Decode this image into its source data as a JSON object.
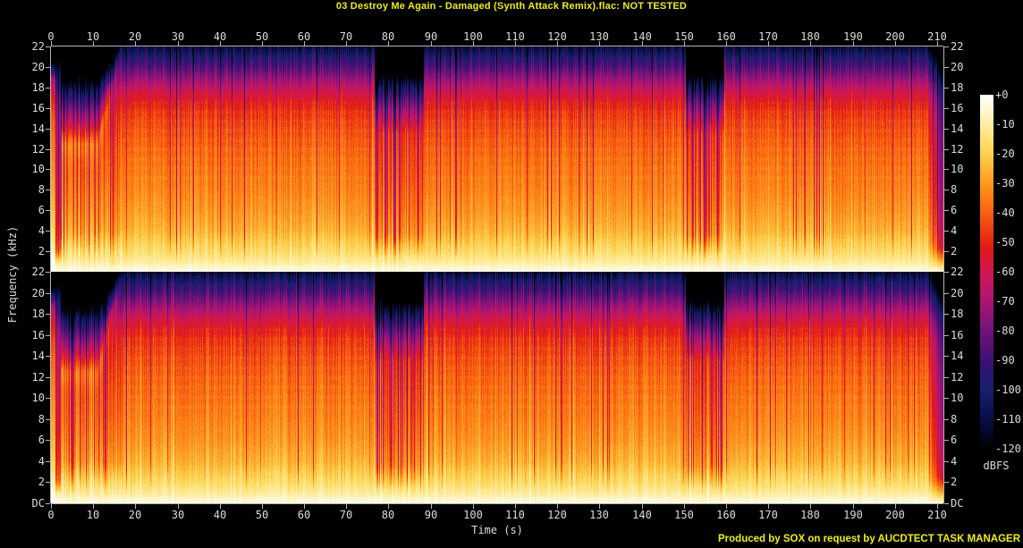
{
  "title": "03 Destroy Me Again - Damaged (Synth Attack Remix).flac: NOT TESTED",
  "file_name": "03 Destroy Me Again - Damaged (Synth Attack Remix).flac",
  "status": "NOT TESTED",
  "credit": "Produced by SOX on request by AUCDTECT TASK MANAGER",
  "colors": {
    "background": "#000000",
    "title_text": "#f0f000",
    "credit_text": "#f0f000",
    "axis_text": "#dcdcdc",
    "axis_line": "#b4b4b4"
  },
  "chart_data": {
    "type": "heatmap",
    "subtype": "audio_spectrogram_dual_channel",
    "title": "03 Destroy Me Again - Damaged (Synth Attack Remix).flac: NOT TESTED",
    "xlabel": "Time (s)",
    "ylabel": "Frequency (kHz)",
    "channels": 2,
    "x_range_s": [
      0,
      211.5
    ],
    "x_ticks": [
      0,
      10,
      20,
      30,
      40,
      50,
      60,
      70,
      80,
      90,
      100,
      110,
      120,
      130,
      140,
      150,
      160,
      170,
      180,
      190,
      200,
      210
    ],
    "freq_ticks_khz": [
      22,
      20,
      18,
      16,
      14,
      12,
      10,
      8,
      6,
      4,
      2
    ],
    "dc_label": "DC",
    "channel_boundary_label": "22",
    "colorbar": {
      "label": "dBFS",
      "tick_labels": [
        "+0",
        "-10",
        "-20",
        "-30",
        "-40",
        "-50",
        "-60",
        "-70",
        "-80",
        "-90",
        "-100",
        "-110",
        "-120"
      ],
      "range_db": [
        0,
        -120
      ],
      "gradient_stops": [
        [
          0,
          "#ffffff"
        ],
        [
          -5,
          "#fff8d6"
        ],
        [
          -12,
          "#ffe98e"
        ],
        [
          -20,
          "#ffd24d"
        ],
        [
          -28,
          "#ffa426"
        ],
        [
          -36,
          "#ff7612"
        ],
        [
          -44,
          "#f04811"
        ],
        [
          -52,
          "#e01a17"
        ],
        [
          -60,
          "#d01850"
        ],
        [
          -68,
          "#b31570"
        ],
        [
          -76,
          "#871478"
        ],
        [
          -84,
          "#5c1278"
        ],
        [
          -92,
          "#341173"
        ],
        [
          -100,
          "#17206b"
        ],
        [
          -108,
          "#0b1150"
        ],
        [
          -116,
          "#03051e"
        ],
        [
          -120,
          "#000000"
        ]
      ]
    },
    "structure": {
      "beat_period_s": 0.472,
      "base_spectrum_db": [
        [
          0,
          -3
        ],
        [
          0.4,
          -6
        ],
        [
          1,
          -11
        ],
        [
          2,
          -17
        ],
        [
          4,
          -26
        ],
        [
          6,
          -31
        ],
        [
          9,
          -36
        ],
        [
          12,
          -40
        ],
        [
          14,
          -44
        ],
        [
          15.5,
          -48
        ],
        [
          16.5,
          -53
        ],
        [
          17.5,
          -60
        ],
        [
          18.5,
          -70
        ],
        [
          19.5,
          -82
        ],
        [
          20.5,
          -94
        ],
        [
          21.3,
          -104
        ],
        [
          22,
          -114
        ]
      ],
      "segments": [
        {
          "t0": 0,
          "t1": 0.9,
          "kind": "burst"
        },
        {
          "t0": 0.9,
          "t1": 2.3,
          "kind": "quiet"
        },
        {
          "t0": 2.3,
          "t1": 16.8,
          "kind": "intro"
        },
        {
          "t0": 16.8,
          "t1": 76.6,
          "kind": "full"
        },
        {
          "t0": 76.6,
          "t1": 88.2,
          "kind": "break"
        },
        {
          "t0": 88.2,
          "t1": 150.4,
          "kind": "full"
        },
        {
          "t0": 150.4,
          "t1": 159.5,
          "kind": "break"
        },
        {
          "t0": 159.5,
          "t1": 207.5,
          "kind": "full"
        },
        {
          "t0": 207.5,
          "t1": 211.5,
          "kind": "outro"
        }
      ]
    }
  }
}
